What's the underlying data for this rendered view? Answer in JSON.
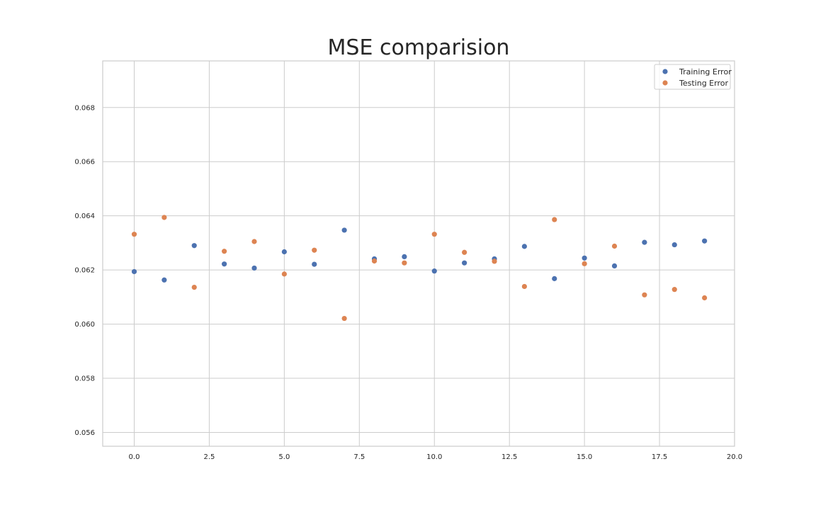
{
  "chart_data": {
    "type": "scatter",
    "title": "MSE comparision",
    "xlabel": "",
    "ylabel": "",
    "xlim": [
      -1.05,
      20.0
    ],
    "ylim": [
      0.05549,
      0.06972
    ],
    "grid": true,
    "legend_position": "top-right",
    "x_ticks": [
      0.0,
      2.5,
      5.0,
      7.5,
      10.0,
      12.5,
      15.0,
      17.5,
      20.0
    ],
    "x_tick_labels": [
      "0.0",
      "2.5",
      "5.0",
      "7.5",
      "10.0",
      "12.5",
      "15.0",
      "17.5",
      "20.0"
    ],
    "y_ticks": [
      0.056,
      0.058,
      0.06,
      0.062,
      0.064,
      0.066,
      0.068
    ],
    "y_tick_labels": [
      "0.056",
      "0.058",
      "0.060",
      "0.062",
      "0.064",
      "0.066",
      "0.068"
    ],
    "x": [
      0,
      1,
      2,
      3,
      4,
      5,
      6,
      7,
      8,
      9,
      10,
      11,
      12,
      13,
      14,
      15,
      16,
      17,
      18,
      19
    ],
    "series": [
      {
        "name": "Training Error",
        "color": "#4c72b0",
        "values": [
          0.06194,
          0.06163,
          0.0629,
          0.06222,
          0.06207,
          0.06267,
          0.06221,
          0.06347,
          0.06241,
          0.06249,
          0.06196,
          0.06226,
          0.06241,
          0.06287,
          0.06168,
          0.06244,
          0.06215,
          0.06302,
          0.06293,
          0.06307
        ]
      },
      {
        "name": "Testing Error",
        "color": "#dd8452",
        "values": [
          0.06332,
          0.06394,
          0.06136,
          0.06269,
          0.06305,
          0.06185,
          0.06273,
          0.06021,
          0.06233,
          0.06226,
          0.06332,
          0.06265,
          0.06232,
          0.06139,
          0.06386,
          0.06223,
          0.06288,
          0.06108,
          0.06128,
          0.06097
        ]
      }
    ]
  }
}
